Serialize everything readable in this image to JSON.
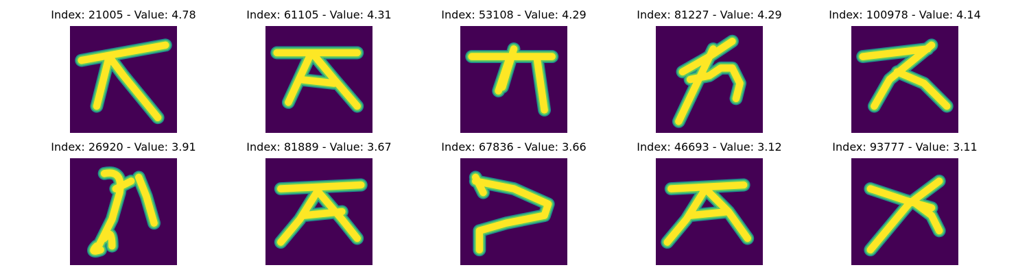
{
  "colors": {
    "background": "#440154",
    "stroke_core": "#fde725",
    "stroke_mid": "#5ec962",
    "stroke_edge": "#21918c"
  },
  "panels": [
    {
      "label": "Index: 21005 - Value: 4.78"
    },
    {
      "label": "Index: 61105 - Value: 4.31"
    },
    {
      "label": "Index: 53108 - Value: 4.29"
    },
    {
      "label": "Index: 81227 - Value: 4.29"
    },
    {
      "label": "Index: 100978 - Value: 4.14"
    },
    {
      "label": "Index: 26920 - Value: 3.91"
    },
    {
      "label": "Index: 81889 - Value: 3.67"
    },
    {
      "label": "Index: 67836 - Value: 3.66"
    },
    {
      "label": "Index: 46693 - Value: 3.12"
    },
    {
      "label": "Index: 93777 - Value: 3.11"
    }
  ]
}
